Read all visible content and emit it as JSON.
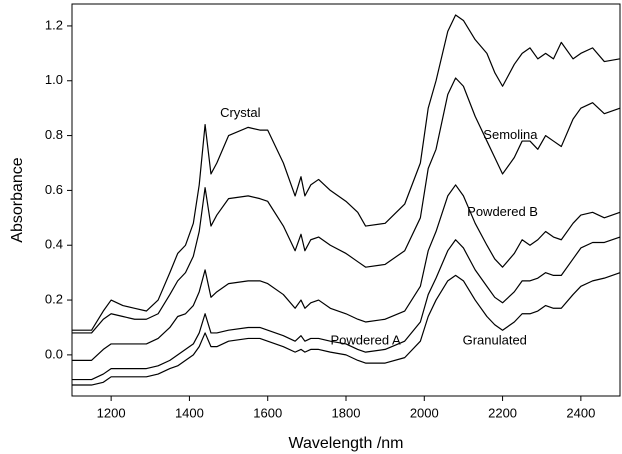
{
  "chart_data": {
    "type": "line",
    "x_label": "Wavelength /nm",
    "y_label": "Absorbance",
    "xlim": [
      1100,
      2500
    ],
    "xticks": [
      1200,
      1400,
      1600,
      1800,
      2000,
      2200,
      2400
    ],
    "ylim": [
      -0.15,
      1.28
    ],
    "yticks": [
      {
        "value": 0,
        "label": "0.0"
      },
      0.2,
      0.4,
      0.6,
      0.8,
      {
        "value": 1,
        "label": "1.0"
      },
      1.2
    ],
    "grid": false,
    "x": [
      1100,
      1150,
      1180,
      1200,
      1230,
      1260,
      1290,
      1320,
      1350,
      1370,
      1390,
      1410,
      1425,
      1440,
      1455,
      1470,
      1500,
      1550,
      1580,
      1600,
      1640,
      1670,
      1685,
      1695,
      1710,
      1730,
      1760,
      1800,
      1830,
      1850,
      1900,
      1950,
      1990,
      2010,
      2030,
      2060,
      2080,
      2100,
      2130,
      2160,
      2180,
      2200,
      2230,
      2250,
      2270,
      2290,
      2310,
      2330,
      2350,
      2380,
      2400,
      2430,
      2460,
      2500
    ],
    "series": [
      {
        "name": "Crystal",
        "color": "#000000",
        "values": [
          0.09,
          0.09,
          0.16,
          0.2,
          0.18,
          0.17,
          0.16,
          0.2,
          0.3,
          0.37,
          0.4,
          0.48,
          0.62,
          0.84,
          0.66,
          0.7,
          0.8,
          0.83,
          0.82,
          0.82,
          0.7,
          0.58,
          0.65,
          0.58,
          0.62,
          0.64,
          0.6,
          0.56,
          0.52,
          0.47,
          0.48,
          0.55,
          0.7,
          0.9,
          1.0,
          1.18,
          1.24,
          1.22,
          1.15,
          1.1,
          1.03,
          0.98,
          1.06,
          1.1,
          1.12,
          1.08,
          1.1,
          1.08,
          1.14,
          1.08,
          1.1,
          1.12,
          1.07,
          1.08
        ]
      },
      {
        "name": "Semolina",
        "color": "#000000",
        "values": [
          0.08,
          0.08,
          0.13,
          0.15,
          0.14,
          0.13,
          0.13,
          0.15,
          0.22,
          0.27,
          0.3,
          0.36,
          0.45,
          0.61,
          0.47,
          0.51,
          0.57,
          0.58,
          0.57,
          0.56,
          0.47,
          0.38,
          0.44,
          0.38,
          0.42,
          0.43,
          0.4,
          0.37,
          0.34,
          0.32,
          0.33,
          0.38,
          0.5,
          0.68,
          0.75,
          0.95,
          1.01,
          0.98,
          0.87,
          0.78,
          0.72,
          0.66,
          0.72,
          0.78,
          0.78,
          0.75,
          0.8,
          0.78,
          0.76,
          0.86,
          0.9,
          0.92,
          0.88,
          0.9
        ]
      },
      {
        "name": "Powdered B",
        "color": "#000000",
        "values": [
          -0.02,
          -0.02,
          0.02,
          0.04,
          0.04,
          0.04,
          0.04,
          0.06,
          0.1,
          0.14,
          0.15,
          0.18,
          0.23,
          0.31,
          0.21,
          0.23,
          0.26,
          0.27,
          0.27,
          0.26,
          0.22,
          0.17,
          0.2,
          0.17,
          0.19,
          0.2,
          0.17,
          0.15,
          0.13,
          0.12,
          0.13,
          0.16,
          0.25,
          0.38,
          0.45,
          0.58,
          0.62,
          0.58,
          0.48,
          0.4,
          0.35,
          0.32,
          0.37,
          0.42,
          0.4,
          0.42,
          0.45,
          0.43,
          0.42,
          0.48,
          0.51,
          0.52,
          0.5,
          0.52
        ]
      },
      {
        "name": "Powdered A",
        "color": "#000000",
        "values": [
          -0.09,
          -0.09,
          -0.07,
          -0.05,
          -0.05,
          -0.05,
          -0.05,
          -0.04,
          -0.02,
          0,
          0.02,
          0.04,
          0.08,
          0.15,
          0.08,
          0.08,
          0.09,
          0.1,
          0.1,
          0.09,
          0.07,
          0.05,
          0.07,
          0.05,
          0.06,
          0.06,
          0.05,
          0.04,
          0.02,
          0.01,
          0.02,
          0.05,
          0.12,
          0.22,
          0.28,
          0.38,
          0.42,
          0.39,
          0.31,
          0.25,
          0.21,
          0.19,
          0.23,
          0.27,
          0.27,
          0.28,
          0.3,
          0.29,
          0.29,
          0.35,
          0.39,
          0.41,
          0.41,
          0.43
        ]
      },
      {
        "name": "Granulated",
        "color": "#000000",
        "values": [
          -0.11,
          -0.11,
          -0.1,
          -0.08,
          -0.08,
          -0.08,
          -0.08,
          -0.07,
          -0.05,
          -0.04,
          -0.02,
          0,
          0.03,
          0.08,
          0.03,
          0.03,
          0.05,
          0.06,
          0.06,
          0.05,
          0.03,
          0.01,
          0.02,
          0.01,
          0.02,
          0.02,
          0.01,
          0,
          -0.02,
          -0.03,
          -0.03,
          -0.01,
          0.05,
          0.14,
          0.2,
          0.27,
          0.29,
          0.27,
          0.2,
          0.14,
          0.11,
          0.09,
          0.12,
          0.15,
          0.15,
          0.16,
          0.18,
          0.17,
          0.17,
          0.22,
          0.25,
          0.27,
          0.28,
          0.3
        ]
      }
    ]
  }
}
